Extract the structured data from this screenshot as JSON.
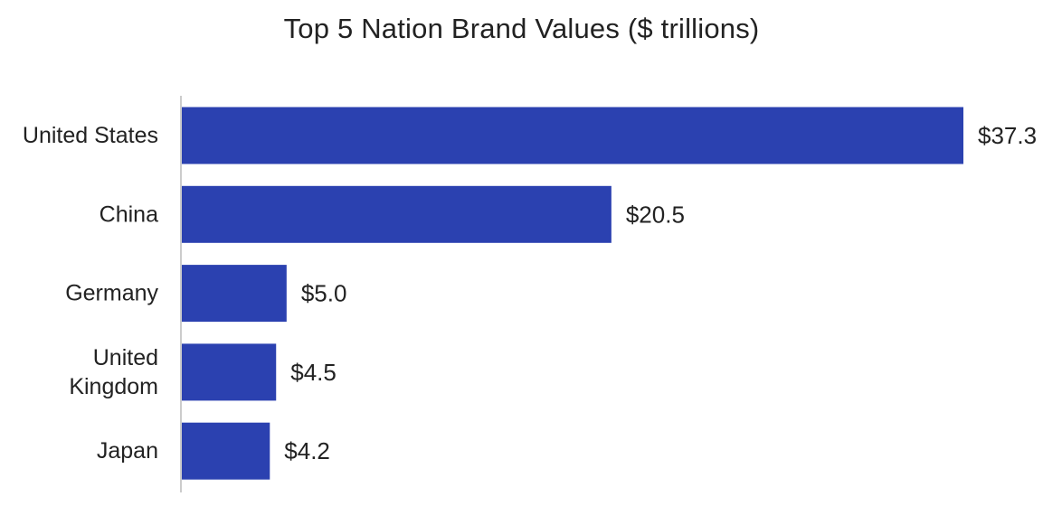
{
  "chart_data": {
    "type": "bar",
    "orientation": "horizontal",
    "title": "Top 5 Nation Brand Values ($ trillions)",
    "categories": [
      "United States",
      "China",
      "Germany",
      "United Kingdom",
      "Japan"
    ],
    "category_lines": [
      [
        "United States"
      ],
      [
        "China"
      ],
      [
        "Germany"
      ],
      [
        "United",
        "Kingdom"
      ],
      [
        "Japan"
      ]
    ],
    "values": [
      37.3,
      20.5,
      5.0,
      4.5,
      4.2
    ],
    "value_labels": [
      "$37.3",
      "$20.5",
      "$5.0",
      "$4.5",
      "$4.2"
    ],
    "xlabel": "",
    "ylabel": "",
    "grid": false,
    "bar_color": "#2b41b0",
    "axis_color": "#cccccc"
  }
}
